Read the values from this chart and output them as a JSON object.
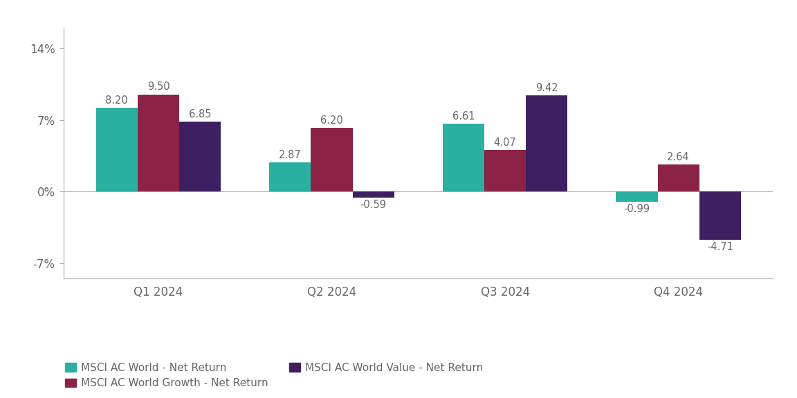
{
  "categories": [
    "Q1 2024",
    "Q2 2024",
    "Q3 2024",
    "Q4 2024"
  ],
  "series": [
    {
      "name": "MSCI AC World - Net Return",
      "values": [
        8.2,
        2.87,
        6.61,
        -0.99
      ],
      "color": "#2AAFA0"
    },
    {
      "name": "MSCI AC World Growth - Net Return",
      "values": [
        9.5,
        6.2,
        4.07,
        2.64
      ],
      "color": "#8B2347"
    },
    {
      "name": "MSCI AC World Value - Net Return",
      "values": [
        6.85,
        -0.59,
        9.42,
        -4.71
      ],
      "color": "#3D1F62"
    }
  ],
  "ylim": [
    -8.5,
    16.0
  ],
  "yticks": [
    -7,
    0,
    7,
    14
  ],
  "ytick_labels": [
    "-7%",
    "0%",
    "7%",
    "14%"
  ],
  "background_color": "#ffffff",
  "bar_width": 0.24,
  "label_fontsize": 10.5,
  "legend_fontsize": 11,
  "tick_fontsize": 12,
  "label_color": "#666666",
  "spine_color": "#aaaaaa"
}
